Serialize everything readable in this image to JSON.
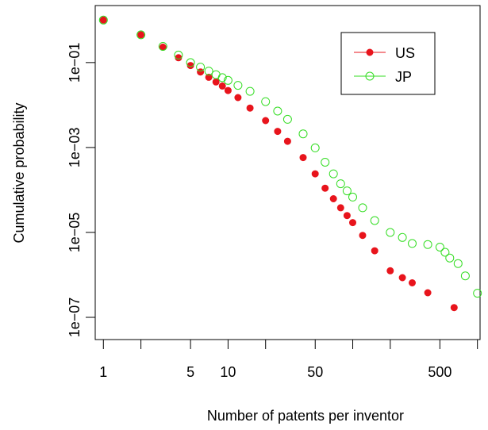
{
  "chart_data": {
    "type": "scatter",
    "title": "",
    "xlabel": "Number of patents per inventor",
    "ylabel": "Cumulative probability",
    "x_scale": "log",
    "y_scale": "log",
    "xlim": [
      0.86,
      1050
    ],
    "ylim": [
      3e-08,
      2.2
    ],
    "x_ticks": [
      1,
      2,
      5,
      10,
      20,
      50,
      100,
      200,
      500,
      1000
    ],
    "x_tick_labels": [
      "1",
      "",
      "5",
      "10",
      "",
      "50",
      "",
      "",
      "500",
      ""
    ],
    "y_ticks": [
      1e-07,
      1e-05,
      0.001,
      0.1
    ],
    "y_tick_labels": [
      "1e−07",
      "1e−05",
      "1e−03",
      "1e−01"
    ],
    "grid": false,
    "legend_position": "top-right",
    "series": [
      {
        "name": "US",
        "color": "#e8141c",
        "marker": "filled-circle",
        "x": [
          1,
          2,
          3,
          4,
          5,
          6,
          7,
          8,
          9,
          10,
          12,
          15,
          20,
          25,
          30,
          40,
          50,
          60,
          70,
          80,
          90,
          100,
          120,
          150,
          200,
          250,
          300,
          400,
          650
        ],
        "y": [
          1.0,
          0.45,
          0.23,
          0.13,
          0.085,
          0.06,
          0.045,
          0.035,
          0.028,
          0.022,
          0.015,
          0.0085,
          0.0043,
          0.0024,
          0.0014,
          0.00058,
          0.00024,
          0.00011,
          6.2e-05,
          3.8e-05,
          2.5e-05,
          1.7e-05,
          8.5e-06,
          3.7e-06,
          1.25e-06,
          8.6e-07,
          6.5e-07,
          3.8e-07,
          1.7e-07
        ]
      },
      {
        "name": "JP",
        "color": "#33dd22",
        "marker": "open-circle",
        "x": [
          1,
          2,
          3,
          4,
          5,
          6,
          7,
          8,
          9,
          10,
          12,
          15,
          20,
          25,
          30,
          40,
          50,
          60,
          70,
          80,
          90,
          100,
          120,
          150,
          200,
          250,
          300,
          400,
          500,
          550,
          600,
          700,
          800,
          1000
        ],
        "y": [
          1.0,
          0.45,
          0.24,
          0.15,
          0.1,
          0.078,
          0.063,
          0.052,
          0.044,
          0.038,
          0.029,
          0.021,
          0.012,
          0.0072,
          0.0046,
          0.0021,
          0.00098,
          0.00045,
          0.00024,
          0.00014,
          9.5e-05,
          6.8e-05,
          3.8e-05,
          1.9e-05,
          1e-05,
          7.6e-06,
          5.5e-06,
          5.2e-06,
          4.5e-06,
          3.4e-06,
          2.5e-06,
          1.85e-06,
          9.5e-07,
          3.7e-07
        ]
      }
    ]
  }
}
